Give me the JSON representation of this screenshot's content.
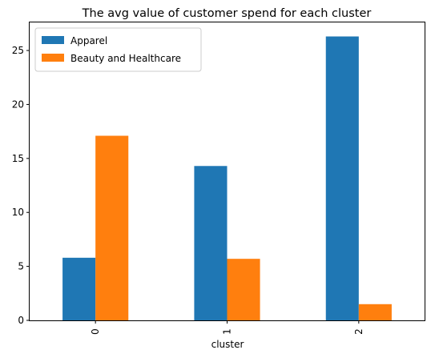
{
  "chart_data": {
    "type": "bar",
    "title": "The avg value of customer spend for each cluster",
    "xlabel": "cluster",
    "ylabel": "",
    "categories": [
      "0",
      "1",
      "2"
    ],
    "series": [
      {
        "name": "Apparel",
        "values": [
          5.8,
          14.3,
          26.3
        ],
        "color": "#1f77b4"
      },
      {
        "name": "Beauty and Healthcare",
        "values": [
          17.1,
          5.7,
          1.5
        ],
        "color": "#ff7f0e"
      }
    ],
    "ylim": [
      0,
      27.6
    ],
    "yticks": [
      0,
      5,
      10,
      15,
      20,
      25
    ],
    "grid": false,
    "legend_position": "top-left"
  }
}
